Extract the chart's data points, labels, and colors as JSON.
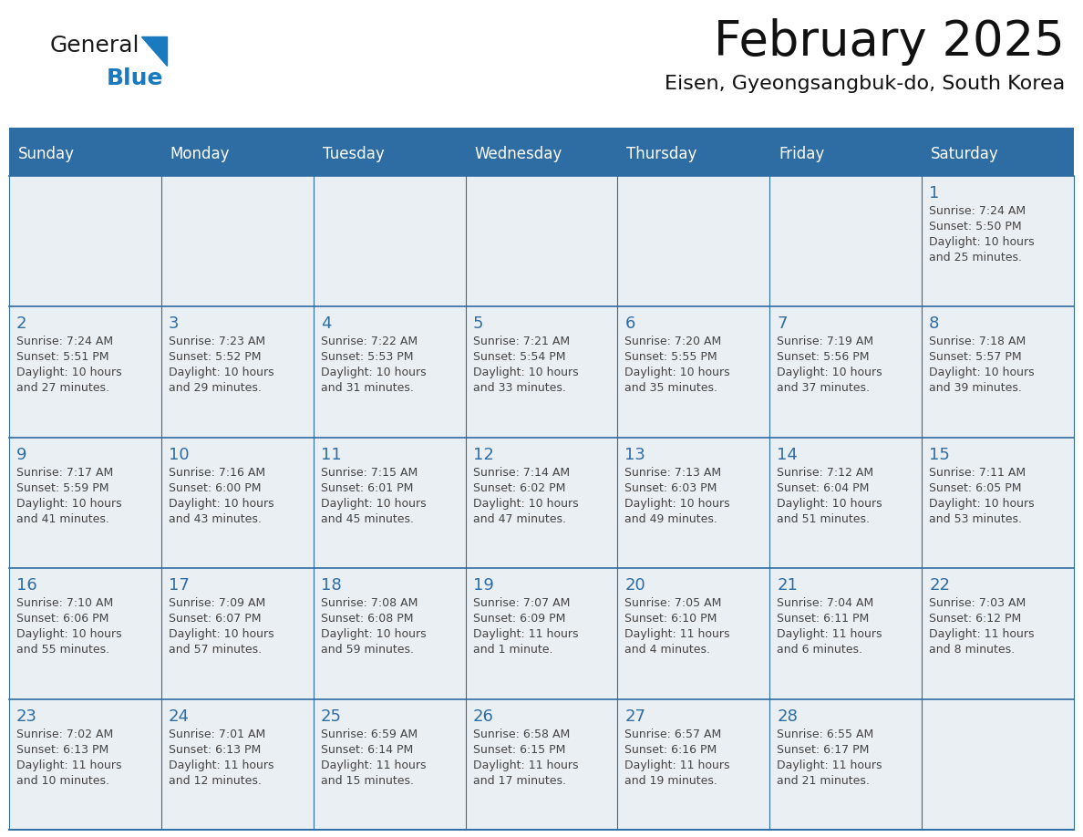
{
  "title": "February 2025",
  "subtitle": "Eisen, Gyeongsangbuk-do, South Korea",
  "days_of_week": [
    "Sunday",
    "Monday",
    "Tuesday",
    "Wednesday",
    "Thursday",
    "Friday",
    "Saturday"
  ],
  "header_bg": "#2E6DA4",
  "header_text": "#FFFFFF",
  "cell_bg": "#EAEFF4",
  "border_color": "#2E6DA4",
  "day_num_color": "#2E6DA4",
  "text_color": "#444444",
  "title_color": "#111111",
  "logo_dark": "#1a1a1a",
  "logo_blue": "#1a7abf",
  "triangle_color": "#1a7abf",
  "calendar_data": [
    [
      null,
      null,
      null,
      null,
      null,
      null,
      {
        "day": 1,
        "sunrise": "7:24 AM",
        "sunset": "5:50 PM",
        "daylight": "10 hours and 25 minutes."
      }
    ],
    [
      {
        "day": 2,
        "sunrise": "7:24 AM",
        "sunset": "5:51 PM",
        "daylight": "10 hours and 27 minutes."
      },
      {
        "day": 3,
        "sunrise": "7:23 AM",
        "sunset": "5:52 PM",
        "daylight": "10 hours and 29 minutes."
      },
      {
        "day": 4,
        "sunrise": "7:22 AM",
        "sunset": "5:53 PM",
        "daylight": "10 hours and 31 minutes."
      },
      {
        "day": 5,
        "sunrise": "7:21 AM",
        "sunset": "5:54 PM",
        "daylight": "10 hours and 33 minutes."
      },
      {
        "day": 6,
        "sunrise": "7:20 AM",
        "sunset": "5:55 PM",
        "daylight": "10 hours and 35 minutes."
      },
      {
        "day": 7,
        "sunrise": "7:19 AM",
        "sunset": "5:56 PM",
        "daylight": "10 hours and 37 minutes."
      },
      {
        "day": 8,
        "sunrise": "7:18 AM",
        "sunset": "5:57 PM",
        "daylight": "10 hours and 39 minutes."
      }
    ],
    [
      {
        "day": 9,
        "sunrise": "7:17 AM",
        "sunset": "5:59 PM",
        "daylight": "10 hours and 41 minutes."
      },
      {
        "day": 10,
        "sunrise": "7:16 AM",
        "sunset": "6:00 PM",
        "daylight": "10 hours and 43 minutes."
      },
      {
        "day": 11,
        "sunrise": "7:15 AM",
        "sunset": "6:01 PM",
        "daylight": "10 hours and 45 minutes."
      },
      {
        "day": 12,
        "sunrise": "7:14 AM",
        "sunset": "6:02 PM",
        "daylight": "10 hours and 47 minutes."
      },
      {
        "day": 13,
        "sunrise": "7:13 AM",
        "sunset": "6:03 PM",
        "daylight": "10 hours and 49 minutes."
      },
      {
        "day": 14,
        "sunrise": "7:12 AM",
        "sunset": "6:04 PM",
        "daylight": "10 hours and 51 minutes."
      },
      {
        "day": 15,
        "sunrise": "7:11 AM",
        "sunset": "6:05 PM",
        "daylight": "10 hours and 53 minutes."
      }
    ],
    [
      {
        "day": 16,
        "sunrise": "7:10 AM",
        "sunset": "6:06 PM",
        "daylight": "10 hours and 55 minutes."
      },
      {
        "day": 17,
        "sunrise": "7:09 AM",
        "sunset": "6:07 PM",
        "daylight": "10 hours and 57 minutes."
      },
      {
        "day": 18,
        "sunrise": "7:08 AM",
        "sunset": "6:08 PM",
        "daylight": "10 hours and 59 minutes."
      },
      {
        "day": 19,
        "sunrise": "7:07 AM",
        "sunset": "6:09 PM",
        "daylight": "11 hours and 1 minute."
      },
      {
        "day": 20,
        "sunrise": "7:05 AM",
        "sunset": "6:10 PM",
        "daylight": "11 hours and 4 minutes."
      },
      {
        "day": 21,
        "sunrise": "7:04 AM",
        "sunset": "6:11 PM",
        "daylight": "11 hours and 6 minutes."
      },
      {
        "day": 22,
        "sunrise": "7:03 AM",
        "sunset": "6:12 PM",
        "daylight": "11 hours and 8 minutes."
      }
    ],
    [
      {
        "day": 23,
        "sunrise": "7:02 AM",
        "sunset": "6:13 PM",
        "daylight": "11 hours and 10 minutes."
      },
      {
        "day": 24,
        "sunrise": "7:01 AM",
        "sunset": "6:13 PM",
        "daylight": "11 hours and 12 minutes."
      },
      {
        "day": 25,
        "sunrise": "6:59 AM",
        "sunset": "6:14 PM",
        "daylight": "11 hours and 15 minutes."
      },
      {
        "day": 26,
        "sunrise": "6:58 AM",
        "sunset": "6:15 PM",
        "daylight": "11 hours and 17 minutes."
      },
      {
        "day": 27,
        "sunrise": "6:57 AM",
        "sunset": "6:16 PM",
        "daylight": "11 hours and 19 minutes."
      },
      {
        "day": 28,
        "sunrise": "6:55 AM",
        "sunset": "6:17 PM",
        "daylight": "11 hours and 21 minutes."
      },
      null
    ]
  ]
}
